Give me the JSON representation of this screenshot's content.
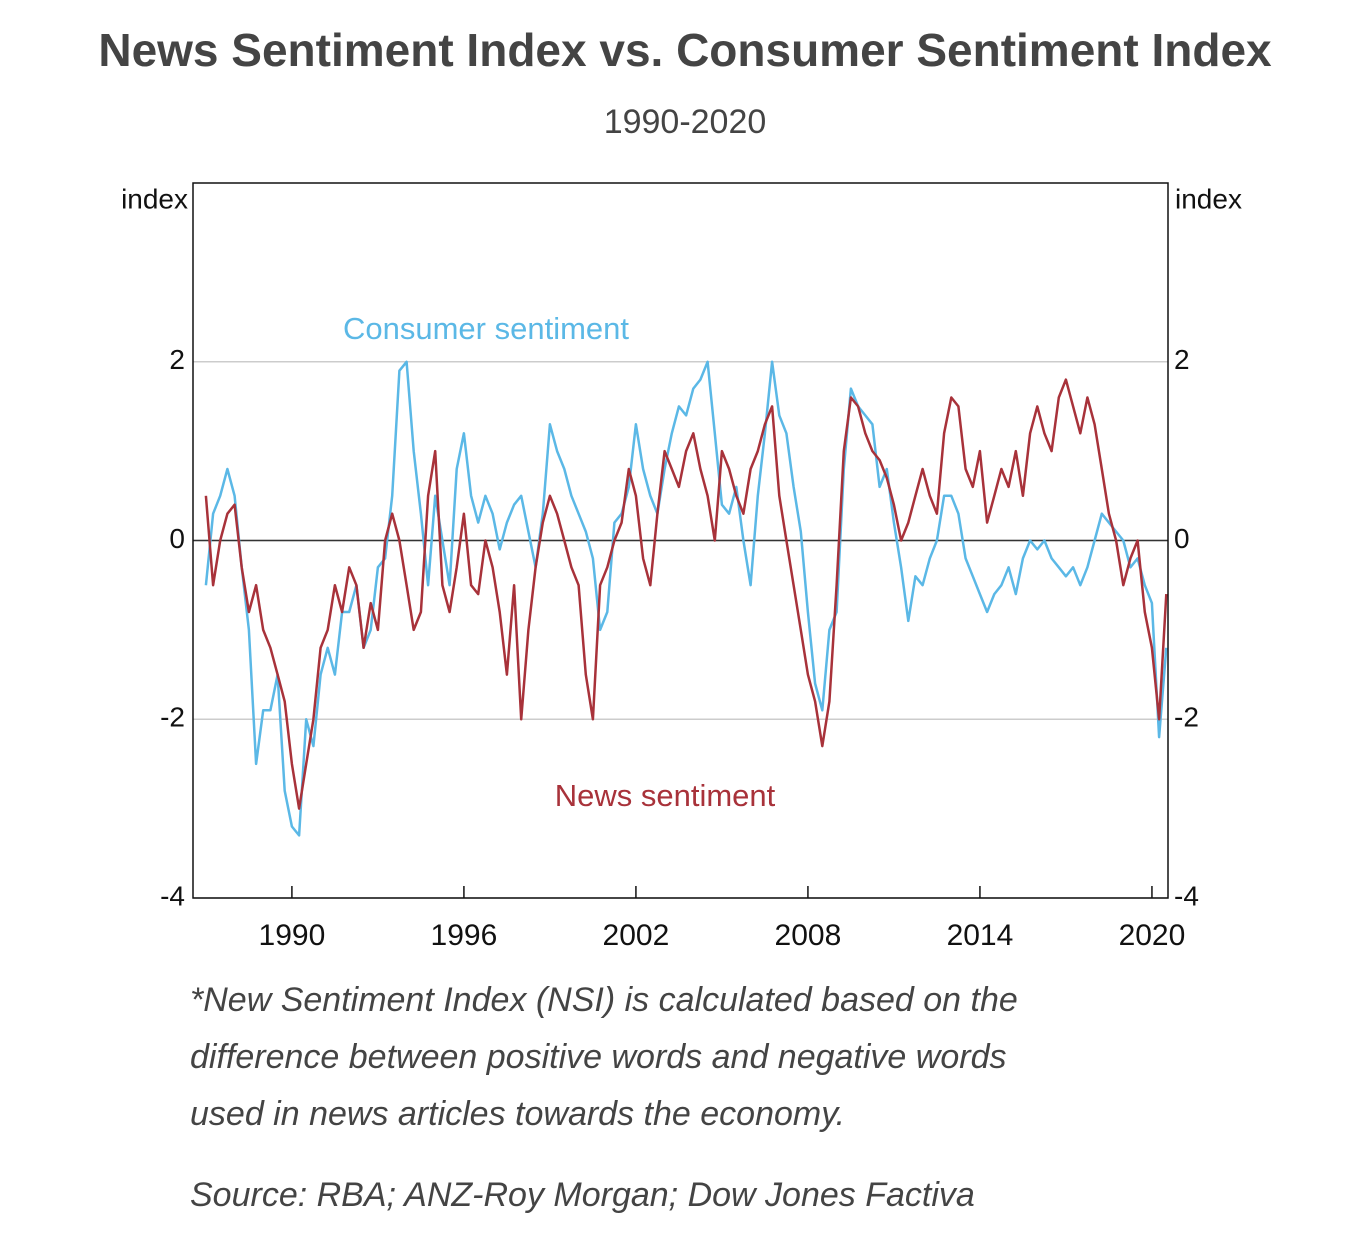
{
  "chart_data": {
    "type": "line",
    "title": "News Sentiment Index vs. Consumer Sentiment Index",
    "subtitle": "1990-2020",
    "ylabel": "index",
    "y2label": "index",
    "x": [
      1987,
      1987.25,
      1987.5,
      1987.75,
      1988,
      1988.25,
      1988.5,
      1988.75,
      1989,
      1989.25,
      1989.5,
      1989.75,
      1990,
      1990.25,
      1990.5,
      1990.75,
      1991,
      1991.25,
      1991.5,
      1991.75,
      1992,
      1992.25,
      1992.5,
      1992.75,
      1993,
      1993.25,
      1993.5,
      1993.75,
      1994,
      1994.25,
      1994.5,
      1994.75,
      1995,
      1995.25,
      1995.5,
      1995.75,
      1996,
      1996.25,
      1996.5,
      1996.75,
      1997,
      1997.25,
      1997.5,
      1997.75,
      1998,
      1998.25,
      1998.5,
      1998.75,
      1999,
      1999.25,
      1999.5,
      1999.75,
      2000,
      2000.25,
      2000.5,
      2000.75,
      2001,
      2001.25,
      2001.5,
      2001.75,
      2002,
      2002.25,
      2002.5,
      2002.75,
      2003,
      2003.25,
      2003.5,
      2003.75,
      2004,
      2004.25,
      2004.5,
      2004.75,
      2005,
      2005.25,
      2005.5,
      2005.75,
      2006,
      2006.25,
      2006.5,
      2006.75,
      2007,
      2007.25,
      2007.5,
      2007.75,
      2008,
      2008.25,
      2008.5,
      2008.75,
      2009,
      2009.25,
      2009.5,
      2009.75,
      2010,
      2010.25,
      2010.5,
      2010.75,
      2011,
      2011.25,
      2011.5,
      2011.75,
      2012,
      2012.25,
      2012.5,
      2012.75,
      2013,
      2013.25,
      2013.5,
      2013.75,
      2014,
      2014.25,
      2014.5,
      2014.75,
      2015,
      2015.25,
      2015.5,
      2015.75,
      2016,
      2016.25,
      2016.5,
      2016.75,
      2017,
      2017.25,
      2017.5,
      2017.75,
      2018,
      2018.25,
      2018.5,
      2018.75,
      2019,
      2019.25,
      2019.5,
      2019.75,
      2020,
      2020.25,
      2020.5
    ],
    "series": [
      {
        "name": "Consumer sentiment",
        "color": "#5bb8e6",
        "values": [
          -0.5,
          0.3,
          0.5,
          0.8,
          0.5,
          -0.3,
          -1.0,
          -2.5,
          -1.9,
          -1.9,
          -1.5,
          -2.8,
          -3.2,
          -3.3,
          -2.0,
          -2.3,
          -1.5,
          -1.2,
          -1.5,
          -0.8,
          -0.8,
          -0.5,
          -1.2,
          -1.0,
          -0.3,
          -0.2,
          0.5,
          1.9,
          2.0,
          1.0,
          0.3,
          -0.5,
          0.5,
          0.0,
          -0.5,
          0.8,
          1.2,
          0.5,
          0.2,
          0.5,
          0.3,
          -0.1,
          0.2,
          0.4,
          0.5,
          0.1,
          -0.3,
          0.3,
          1.3,
          1.0,
          0.8,
          0.5,
          0.3,
          0.1,
          -0.2,
          -1.0,
          -0.8,
          0.2,
          0.3,
          0.6,
          1.3,
          0.8,
          0.5,
          0.3,
          0.8,
          1.2,
          1.5,
          1.4,
          1.7,
          1.8,
          2.0,
          1.2,
          0.4,
          0.3,
          0.6,
          0.0,
          -0.5,
          0.5,
          1.2,
          2.0,
          1.4,
          1.2,
          0.6,
          0.1,
          -0.8,
          -1.6,
          -1.9,
          -1.0,
          -0.8,
          0.8,
          1.7,
          1.5,
          1.4,
          1.3,
          0.6,
          0.8,
          0.2,
          -0.3,
          -0.9,
          -0.4,
          -0.5,
          -0.2,
          0.0,
          0.5,
          0.5,
          0.3,
          -0.2,
          -0.4,
          -0.6,
          -0.8,
          -0.6,
          -0.5,
          -0.3,
          -0.6,
          -0.2,
          0.0,
          -0.1,
          0.0,
          -0.2,
          -0.3,
          -0.4,
          -0.3,
          -0.5,
          -0.3,
          0.0,
          0.3,
          0.2,
          0.1,
          0.0,
          -0.3,
          -0.2,
          -0.5,
          -0.7,
          -2.2,
          -1.2
        ]
      },
      {
        "name": "News sentiment",
        "color": "#a8323a",
        "values": [
          0.5,
          -0.5,
          0.0,
          0.3,
          0.4,
          -0.3,
          -0.8,
          -0.5,
          -1.0,
          -1.2,
          -1.5,
          -1.8,
          -2.5,
          -3.0,
          -2.5,
          -2.0,
          -1.2,
          -1.0,
          -0.5,
          -0.8,
          -0.3,
          -0.5,
          -1.2,
          -0.7,
          -1.0,
          0.0,
          0.3,
          0.0,
          -0.5,
          -1.0,
          -0.8,
          0.5,
          1.0,
          -0.5,
          -0.8,
          -0.3,
          0.3,
          -0.5,
          -0.6,
          0.0,
          -0.3,
          -0.8,
          -1.5,
          -0.5,
          -2.0,
          -1.0,
          -0.3,
          0.2,
          0.5,
          0.3,
          0.0,
          -0.3,
          -0.5,
          -1.5,
          -2.0,
          -0.5,
          -0.3,
          0.0,
          0.2,
          0.8,
          0.5,
          -0.2,
          -0.5,
          0.3,
          1.0,
          0.8,
          0.6,
          1.0,
          1.2,
          0.8,
          0.5,
          0.0,
          1.0,
          0.8,
          0.5,
          0.3,
          0.8,
          1.0,
          1.3,
          1.5,
          0.5,
          0.0,
          -0.5,
          -1.0,
          -1.5,
          -1.8,
          -2.3,
          -1.8,
          -0.5,
          1.0,
          1.6,
          1.5,
          1.2,
          1.0,
          0.9,
          0.7,
          0.4,
          0.0,
          0.2,
          0.5,
          0.8,
          0.5,
          0.3,
          1.2,
          1.6,
          1.5,
          0.8,
          0.6,
          1.0,
          0.2,
          0.5,
          0.8,
          0.6,
          1.0,
          0.5,
          1.2,
          1.5,
          1.2,
          1.0,
          1.6,
          1.8,
          1.5,
          1.2,
          1.6,
          1.3,
          0.8,
          0.3,
          0.0,
          -0.5,
          -0.2,
          0.0,
          -0.8,
          -1.2,
          -2.0,
          -0.6
        ]
      }
    ],
    "xlim": [
      1986.55,
      2020.56
    ],
    "xticks": [
      1990,
      1996,
      2002,
      2008,
      2014,
      2020
    ],
    "ylim": [
      -4,
      4
    ],
    "yticks": [
      -4,
      -2,
      0,
      2
    ],
    "y2lim": [
      -4,
      4
    ],
    "y2ticks": [
      -4,
      -2,
      0,
      2
    ],
    "grid": true,
    "note": [
      "*New Sentiment Index (NSI) is calculated based on the",
      "difference between positive words and negative words",
      "used in news articles towards the economy."
    ],
    "source": "Source: RBA; ANZ-Roy Morgan; Dow Jones Factiva"
  }
}
